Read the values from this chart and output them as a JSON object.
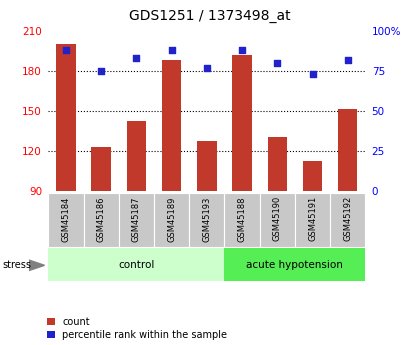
{
  "title": "GDS1251 / 1373498_at",
  "samples": [
    "GSM45184",
    "GSM45186",
    "GSM45187",
    "GSM45189",
    "GSM45193",
    "GSM45188",
    "GSM45190",
    "GSM45191",
    "GSM45192"
  ],
  "counts": [
    200,
    123,
    143,
    188,
    128,
    192,
    131,
    113,
    152
  ],
  "percentiles": [
    88,
    75,
    83,
    88,
    77,
    88,
    80,
    73,
    82
  ],
  "ymin": 90,
  "ymax": 210,
  "yright_min": 0,
  "yright_max": 100,
  "yticks_left": [
    90,
    120,
    150,
    180,
    210
  ],
  "yticks_right": [
    0,
    25,
    50,
    75,
    100
  ],
  "bar_color": "#c0392b",
  "dot_color": "#2222cc",
  "control_group": [
    0,
    1,
    2,
    3,
    4
  ],
  "acute_group": [
    5,
    6,
    7,
    8
  ],
  "control_label": "control",
  "acute_label": "acute hypotension",
  "stress_label": "stress",
  "legend_count": "count",
  "legend_percentile": "percentile rank within the sample",
  "control_color": "#ccffcc",
  "acute_color": "#55ee55",
  "tick_bg_color": "#c8c8c8",
  "title_fontsize": 10,
  "bar_width": 0.55
}
